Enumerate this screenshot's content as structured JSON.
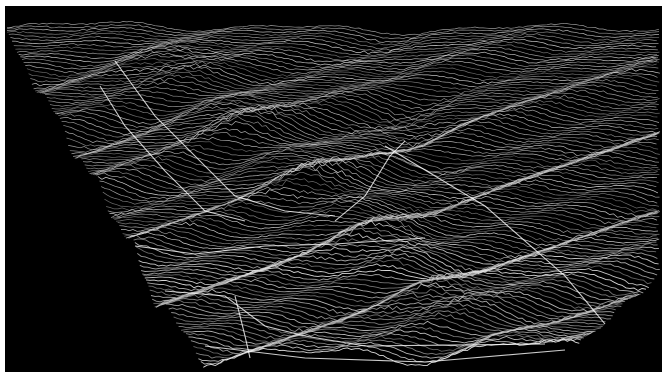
{
  "image": {
    "subject": "wireframe-terrain",
    "colors": {
      "background": "#000000",
      "frame": "#ffffff",
      "lines": "#e6e6e6",
      "highlight": "#ffffff"
    }
  }
}
